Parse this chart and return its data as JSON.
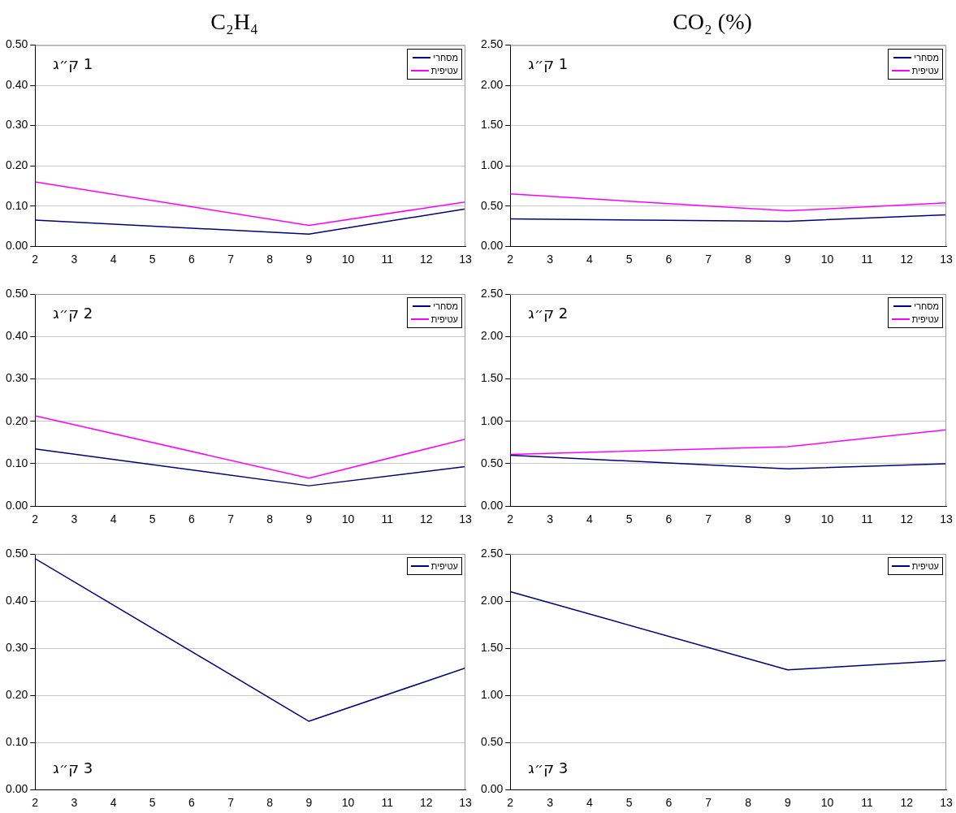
{
  "chart_data": [
    {
      "type": "line",
      "title": "C₂H₄",
      "x": [
        2,
        9,
        13
      ],
      "xlim": [
        2,
        13
      ],
      "xticks": [
        2,
        3,
        4,
        5,
        6,
        7,
        8,
        9,
        10,
        11,
        12,
        13
      ],
      "ylim": [
        0,
        0.5
      ],
      "yticks": [
        {
          "value": 0,
          "label": "0.00"
        },
        {
          "value": 0.1,
          "label": "0.10"
        },
        {
          "value": 0.2,
          "label": "0.20"
        },
        {
          "value": 0.3,
          "label": "0.30"
        },
        {
          "value": 0.4,
          "label": "0.40"
        },
        {
          "value": 0.5,
          "label": "0.50"
        }
      ],
      "grid": "y",
      "legend": "top right",
      "annotations": [
        "1 ק״ג"
      ],
      "series": [
        {
          "name": "מסחרי",
          "color": "#000080",
          "values": [
            0.065,
            0.03,
            0.093
          ]
        },
        {
          "name": "עטיפית",
          "color": "#ff00ff",
          "values": [
            0.16,
            0.052,
            0.11
          ]
        }
      ]
    },
    {
      "type": "line",
      "title": "CO₂ (%)",
      "x": [
        2,
        9,
        13
      ],
      "xlim": [
        2,
        13
      ],
      "xticks": [
        2,
        3,
        4,
        5,
        6,
        7,
        8,
        9,
        10,
        11,
        12,
        13
      ],
      "ylim": [
        0,
        2.5
      ],
      "yticks": [
        {
          "value": 0,
          "label": "0.00"
        },
        {
          "value": 0.5,
          "label": "0.50"
        },
        {
          "value": 1,
          "label": "1.00"
        },
        {
          "value": 1.5,
          "label": "1.50"
        },
        {
          "value": 2,
          "label": "2.00"
        },
        {
          "value": 2.5,
          "label": "2.50"
        }
      ],
      "grid": "y",
      "legend": "top right",
      "annotations": [
        "1 ק״ג"
      ],
      "series": [
        {
          "name": "מסחרי",
          "color": "#000080",
          "values": [
            0.34,
            0.31,
            0.39
          ]
        },
        {
          "name": "עטיפית",
          "color": "#ff00ff",
          "values": [
            0.65,
            0.44,
            0.54
          ]
        }
      ]
    },
    {
      "type": "line",
      "x": [
        2,
        9,
        13
      ],
      "xlim": [
        2,
        13
      ],
      "xticks": [
        2,
        3,
        4,
        5,
        6,
        7,
        8,
        9,
        10,
        11,
        12,
        13
      ],
      "ylim": [
        0,
        0.5
      ],
      "yticks": [
        {
          "value": 0,
          "label": "0.00"
        },
        {
          "value": 0.1,
          "label": "0.10"
        },
        {
          "value": 0.2,
          "label": "0.20"
        },
        {
          "value": 0.3,
          "label": "0.30"
        },
        {
          "value": 0.4,
          "label": "0.40"
        },
        {
          "value": 0.5,
          "label": "0.50"
        }
      ],
      "grid": "y",
      "legend": "top right",
      "annotations": [
        "2 ק״ג"
      ],
      "series": [
        {
          "name": "מסחרי",
          "color": "#000080",
          "values": [
            0.135,
            0.048,
            0.093
          ]
        },
        {
          "name": "עטיפית",
          "color": "#ff00ff",
          "values": [
            0.213,
            0.066,
            0.158
          ]
        }
      ]
    },
    {
      "type": "line",
      "x": [
        2,
        9,
        13
      ],
      "xlim": [
        2,
        13
      ],
      "xticks": [
        2,
        3,
        4,
        5,
        6,
        7,
        8,
        9,
        10,
        11,
        12,
        13
      ],
      "ylim": [
        0,
        2.5
      ],
      "yticks": [
        {
          "value": 0,
          "label": "0.00"
        },
        {
          "value": 0.5,
          "label": "0.50"
        },
        {
          "value": 1,
          "label": "1.00"
        },
        {
          "value": 1.5,
          "label": "1.50"
        },
        {
          "value": 2,
          "label": "2.00"
        },
        {
          "value": 2.5,
          "label": "2.50"
        }
      ],
      "grid": "y",
      "legend": "top right",
      "annotations": [
        "2 ק״ג"
      ],
      "series": [
        {
          "name": "מסחרי",
          "color": "#000080",
          "values": [
            0.6,
            0.44,
            0.5
          ]
        },
        {
          "name": "עטיפית",
          "color": "#ff00ff",
          "values": [
            0.61,
            0.7,
            0.9
          ]
        }
      ]
    },
    {
      "type": "line",
      "x": [
        2,
        9,
        13
      ],
      "xlim": [
        2,
        13
      ],
      "xticks": [
        2,
        3,
        4,
        5,
        6,
        7,
        8,
        9,
        10,
        11,
        12,
        13
      ],
      "ylim": [
        0,
        0.5
      ],
      "yticks": [
        {
          "value": 0,
          "label": "0.00"
        },
        {
          "value": 0.1,
          "label": "0.10"
        },
        {
          "value": 0.2,
          "label": "0.20"
        },
        {
          "value": 0.3,
          "label": "0.30"
        },
        {
          "value": 0.4,
          "label": "0.40"
        },
        {
          "value": 0.5,
          "label": "0.50"
        }
      ],
      "grid": "y",
      "legend": "top right",
      "annotations": [
        "3 ק״ג"
      ],
      "series": [
        {
          "name": "עטיפית",
          "color": "#000080",
          "values": [
            0.49,
            0.145,
            0.258
          ]
        }
      ]
    },
    {
      "type": "line",
      "x": [
        2,
        9,
        13
      ],
      "xlim": [
        2,
        13
      ],
      "xticks": [
        2,
        3,
        4,
        5,
        6,
        7,
        8,
        9,
        10,
        11,
        12,
        13
      ],
      "ylim": [
        0,
        2.5
      ],
      "yticks": [
        {
          "value": 0,
          "label": "0.00"
        },
        {
          "value": 0.5,
          "label": "0.50"
        },
        {
          "value": 1,
          "label": "1.00"
        },
        {
          "value": 1.5,
          "label": "1.50"
        },
        {
          "value": 2,
          "label": "2.00"
        },
        {
          "value": 2.5,
          "label": "2.50"
        }
      ],
      "grid": "y",
      "legend": "top right",
      "annotations": [
        "3 ק״ג"
      ],
      "series": [
        {
          "name": "עטיפית",
          "color": "#000080",
          "values": [
            2.1,
            1.27,
            1.37
          ]
        }
      ]
    }
  ]
}
